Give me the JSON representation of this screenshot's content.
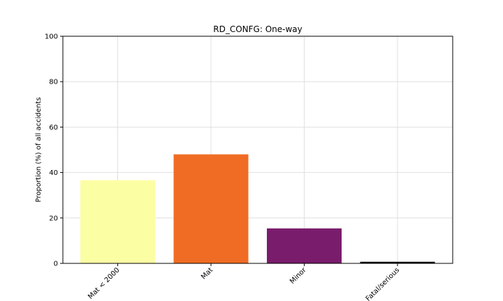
{
  "chart_data": {
    "type": "bar",
    "title": "RD_CONFG: One-way",
    "xlabel": "",
    "ylabel": "Proportion (%) of all accidents",
    "categories": [
      "Mat < 2000",
      "Mat",
      "Minor",
      "Fatal/serious"
    ],
    "values": [
      36.6,
      48.0,
      15.4,
      0.7
    ],
    "colors": [
      "#fcfea4",
      "#f06c24",
      "#7a1c6c",
      "#000004"
    ],
    "ylim": [
      0,
      100
    ],
    "yticks": [
      0,
      20,
      40,
      60,
      80,
      100
    ],
    "grid": true,
    "xtick_rotation": 45
  }
}
